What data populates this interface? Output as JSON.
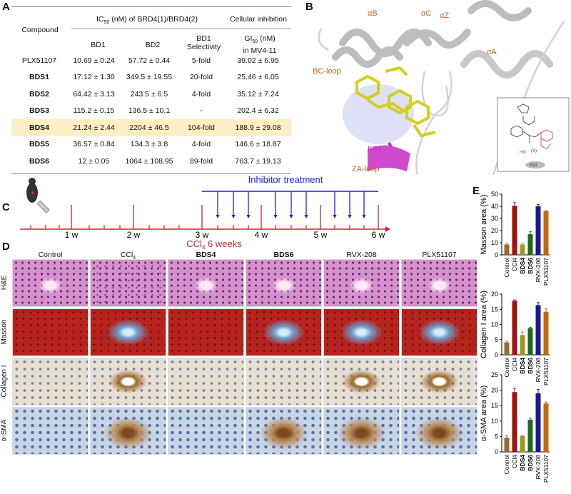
{
  "panel_labels": {
    "a": "A",
    "b": "B",
    "c": "C",
    "d": "D",
    "e": "E"
  },
  "table": {
    "compound_header": "Compound",
    "ic50_header": "IC50 (nM) of BRD4(1)/BRD4(2)",
    "cellular_header": "Cellular inhibition",
    "columns": [
      "BD1",
      "BD2",
      "BD1 Selectivity",
      "GI50 (nM) in MV4-11"
    ],
    "rows": [
      {
        "compound": "PLX51107",
        "bd1": "10.69 ± 0.24",
        "bd2": "57.72 ± 0.44",
        "selectivity": "5-fold",
        "gi50": "39.02 ± 6.95",
        "bold": false,
        "highlight": false
      },
      {
        "compound": "BDS1",
        "bd1": "17.12 ± 1.30",
        "bd2": "349.5 ± 19.55",
        "selectivity": "20-fold",
        "gi50": "25.46 ± 6.05",
        "bold": true,
        "highlight": false
      },
      {
        "compound": "BDS2",
        "bd1": "64.42 ± 3.13",
        "bd2": "243.5 ± 6.5",
        "selectivity": "4-fold",
        "gi50": "35.12 ± 7.24",
        "bold": true,
        "highlight": false
      },
      {
        "compound": "BDS3",
        "bd1": "115.2 ± 0.15",
        "bd2": "136.5 ± 10.1",
        "selectivity": "-",
        "gi50": "202.4 ± 6.32",
        "bold": true,
        "highlight": false
      },
      {
        "compound": "BDS4",
        "bd1": "21.24 ± 2.44",
        "bd2": "2204 ± 46.5",
        "selectivity": "104-fold",
        "gi50": "188.9 ± 29.08",
        "bold": true,
        "highlight": true
      },
      {
        "compound": "BDS5",
        "bd1": "36.57 ± 0.84",
        "bd2": "134.3 ± 3.8",
        "selectivity": "4-fold",
        "gi50": "146.6 ± 18.87",
        "bold": true,
        "highlight": false
      },
      {
        "compound": "BDS6",
        "bd1": "12 ± 0.05",
        "bd2": "1064 ± 108.95",
        "selectivity": "89-fold",
        "gi50": "763.7 ± 19.13",
        "bold": true,
        "highlight": false
      }
    ],
    "highlight_color": "#fdeec3"
  },
  "structure": {
    "labels": {
      "alpha_b": "αB",
      "alpha_c": "αC",
      "alpha_z": "αZ",
      "alpha_a": "αA",
      "bc_loop": "BC-loop",
      "za_loop": "ZA-loop",
      "k91": "K91"
    },
    "inset": {
      "stereo": "(S)",
      "ho": "HO",
      "n": "N",
      "o": "O",
      "k91": "K91"
    },
    "label_color": "#c8651b"
  },
  "timeline": {
    "treatment_label": "Inhibitor treatment",
    "axis_label": "CCl4 6 weeks",
    "weeks": [
      "1 w",
      "2 w",
      "3 w",
      "4 w",
      "5 w",
      "6 w"
    ],
    "treatment_color": "#1a1aff",
    "axis_color": "#c0282d"
  },
  "histology": {
    "columns": [
      "Control",
      "CCl4",
      "BDS4",
      "BDS6",
      "RVX-208",
      "PLX51107"
    ],
    "rows": [
      "H&E",
      "Masson",
      "Collagen I",
      "α-SMA"
    ]
  },
  "chart_data": [
    {
      "type": "bar",
      "ylabel": "Masson area (%)",
      "categories": [
        "Control",
        "CCl4",
        "BDS4",
        "BDS6",
        "RVX-208",
        "PLX51107"
      ],
      "values": [
        8.5,
        40.5,
        8.5,
        17,
        40,
        36
      ],
      "errors": [
        1.2,
        2.5,
        1,
        2,
        1.5,
        0.6
      ],
      "ylim": [
        0,
        50
      ],
      "yticks": [
        0,
        10,
        20,
        30,
        40,
        50
      ]
    },
    {
      "type": "bar",
      "ylabel": "Collagen I area (%)",
      "categories": [
        "Control",
        "CCl4",
        "BDS4",
        "BDS6",
        "RVX-208",
        "PLX51107"
      ],
      "values": [
        4.1,
        17.8,
        6.5,
        8.8,
        16.4,
        14.2
      ],
      "errors": [
        0.4,
        0.3,
        1,
        0.3,
        0.8,
        1
      ],
      "ylim": [
        0,
        20
      ],
      "yticks": [
        0,
        5,
        10,
        15,
        20
      ]
    },
    {
      "type": "bar",
      "ylabel": "α-SMA area (%)",
      "categories": [
        "Control",
        "CCl4",
        "BDS4",
        "BDS6",
        "RVX-208",
        "PLX51107"
      ],
      "values": [
        4.6,
        19.4,
        5.1,
        10.4,
        19.0,
        15.7
      ],
      "errors": [
        0.6,
        1.2,
        0.3,
        0.5,
        1.3,
        0.5
      ],
      "ylim": [
        0,
        25
      ],
      "yticks": [
        0,
        5,
        10,
        15,
        20,
        25
      ]
    }
  ],
  "bar_colors": [
    "#9b6a2a",
    "#a50f12",
    "#9a9a1a",
    "#1d6b1d",
    "#1a1a8c",
    "#c8660f"
  ]
}
